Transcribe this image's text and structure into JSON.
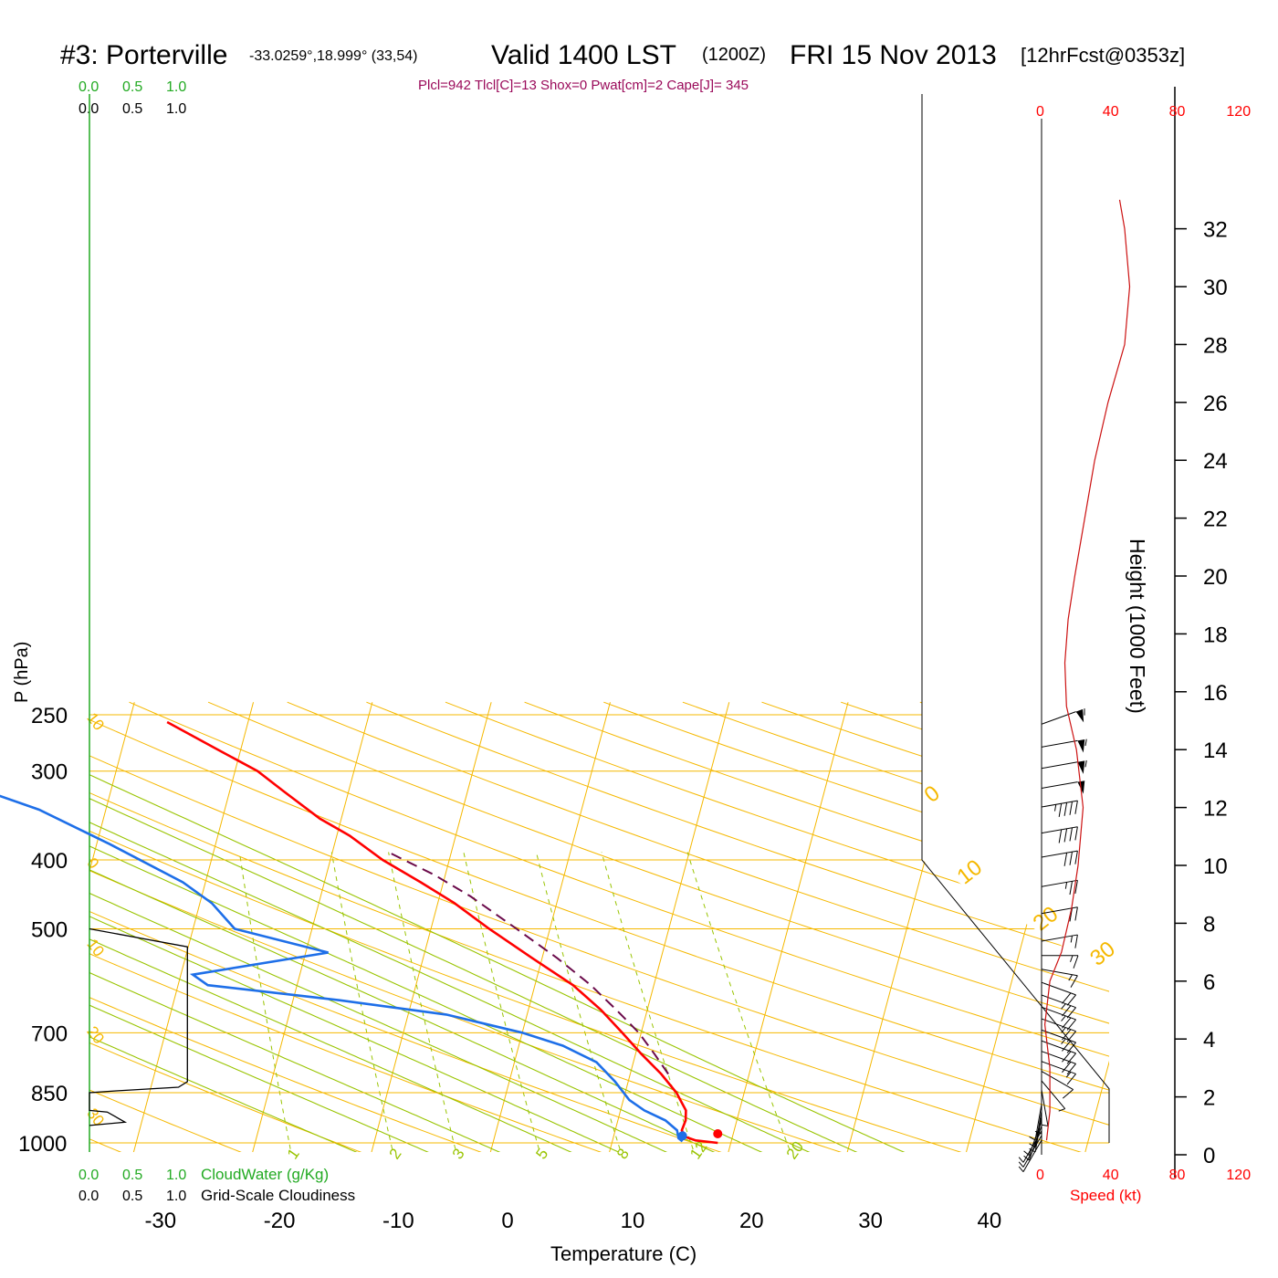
{
  "header": {
    "station": "#3: Porterville",
    "coords": "-33.0259°,18.999° (33,54)",
    "valid": "Valid 1400 LST",
    "zulu": "(1200Z)",
    "date": "FRI 15 Nov 2013",
    "forecast": "[12hrFcst@0353z]",
    "indices": "Plcl=942 Tlcl[C]=13 Shox=0 Pwat[cm]=2 Cape[J]= 345"
  },
  "axes": {
    "ylabel": "P (hPa)",
    "xlabel": "Temperature (C)",
    "height_label": "Height (1000 Feet)",
    "speed_label": "Speed (kt)",
    "cloudwater_label": "CloudWater (g/Kg)",
    "cloudiness_label": "Grid-Scale Cloudiness"
  },
  "colors": {
    "temperature": "#ff0000",
    "dewpoint": "#1e6fe8",
    "parcel": "#6b0a4a",
    "isobar": "#f5b800",
    "isotherm": "#f5b800",
    "dry_adiabat": "#f5b800",
    "moist_adiabat": "#99c400",
    "mixing_ratio": "#99c400",
    "cloud_water": "#22aa22",
    "header_indices": "#9a0a5a",
    "speed_axis": "#ff0000"
  },
  "chart_data": {
    "type": "line",
    "skewt": true,
    "pressure_levels": [
      250,
      300,
      400,
      500,
      700,
      850,
      1000
    ],
    "temperature_ticks": [
      -30,
      -20,
      -10,
      0,
      10,
      20,
      30,
      40
    ],
    "xlim": [
      -34,
      36
    ],
    "ylim_hpa": [
      1030,
      250
    ],
    "dry_adiabat_labels": [
      "10",
      "0",
      "10",
      "20",
      "30",
      "0",
      "10",
      "20",
      "30"
    ],
    "mixing_ratio_labels": [
      "1",
      "2",
      "3",
      "5",
      "8",
      "12",
      "20"
    ],
    "series": [
      {
        "name": "Temperature",
        "points": [
          {
            "p": 1000,
            "t": 18.9
          },
          {
            "p": 992,
            "t": 17.0
          },
          {
            "p": 980,
            "t": 16.0
          },
          {
            "p": 960,
            "t": 15.6
          },
          {
            "p": 930,
            "t": 15.7
          },
          {
            "p": 900,
            "t": 15.5
          },
          {
            "p": 850,
            "t": 14.3
          },
          {
            "p": 800,
            "t": 12.6
          },
          {
            "p": 750,
            "t": 10.5
          },
          {
            "p": 700,
            "t": 8.4
          },
          {
            "p": 650,
            "t": 6.1
          },
          {
            "p": 600,
            "t": 3.2
          },
          {
            "p": 550,
            "t": -0.8
          },
          {
            "p": 500,
            "t": -5.1
          },
          {
            "p": 460,
            "t": -8.6
          },
          {
            "p": 430,
            "t": -11.9
          },
          {
            "p": 400,
            "t": -15.6
          },
          {
            "p": 370,
            "t": -18.9
          },
          {
            "p": 350,
            "t": -21.8
          },
          {
            "p": 320,
            "t": -25.5
          },
          {
            "p": 300,
            "t": -28.1
          },
          {
            "p": 280,
            "t": -31.9
          },
          {
            "p": 256,
            "t": -36.8
          }
        ]
      },
      {
        "name": "Dewpoint",
        "points": [
          {
            "p": 995,
            "t": 15.9
          },
          {
            "p": 985,
            "t": 15.5
          },
          {
            "p": 960,
            "t": 15.2
          },
          {
            "p": 930,
            "t": 14.0
          },
          {
            "p": 900,
            "t": 12.0
          },
          {
            "p": 870,
            "t": 10.5
          },
          {
            "p": 820,
            "t": 8.9
          },
          {
            "p": 770,
            "t": 6.9
          },
          {
            "p": 730,
            "t": 3.7
          },
          {
            "p": 700,
            "t": 0.0
          },
          {
            "p": 660,
            "t": -6.8
          },
          {
            "p": 630,
            "t": -16.1
          },
          {
            "p": 600,
            "t": -27.5
          },
          {
            "p": 580,
            "t": -29.0
          },
          {
            "p": 540,
            "t": -18.1
          },
          {
            "p": 500,
            "t": -26.5
          },
          {
            "p": 460,
            "t": -29.0
          },
          {
            "p": 430,
            "t": -31.9
          },
          {
            "p": 380,
            "t": -38.9
          },
          {
            "p": 340,
            "t": -45.6
          },
          {
            "p": 320,
            "t": -50.5
          },
          {
            "p": 300,
            "t": -54.1
          },
          {
            "p": 280,
            "t": -54.0
          },
          {
            "p": 256,
            "t": -54.4
          }
        ]
      },
      {
        "name": "Parcel",
        "points": [
          {
            "p": 800,
            "t": 13.2
          },
          {
            "p": 750,
            "t": 11.6
          },
          {
            "p": 700,
            "t": 9.8
          },
          {
            "p": 650,
            "t": 7.4
          },
          {
            "p": 600,
            "t": 4.7
          },
          {
            "p": 550,
            "t": 1.3
          },
          {
            "p": 500,
            "t": -2.8
          },
          {
            "p": 450,
            "t": -7.4
          },
          {
            "p": 420,
            "t": -10.9
          },
          {
            "p": 390,
            "t": -15.3
          }
        ]
      }
    ],
    "cloud_cover": [
      {
        "p": 500,
        "frac": 0.0
      },
      {
        "p": 530,
        "frac": 0.55
      },
      {
        "p": 820,
        "frac": 0.55
      },
      {
        "p": 835,
        "frac": 0.5
      },
      {
        "p": 845,
        "frac": 0.15
      },
      {
        "p": 850,
        "frac": 0.0
      },
      {
        "p": 900,
        "frac": 0.0
      },
      {
        "p": 905,
        "frac": 0.1
      },
      {
        "p": 935,
        "frac": 0.2
      },
      {
        "p": 945,
        "frac": 0.0
      }
    ],
    "height_axis": {
      "ticks": [
        0,
        2,
        4,
        6,
        8,
        10,
        12,
        14,
        16,
        18,
        20,
        22,
        24,
        26,
        28,
        30,
        32
      ]
    },
    "speed_axis": {
      "ticks": [
        0,
        40,
        80,
        120
      ]
    },
    "wind_speed_profile": [
      {
        "h": 0.5,
        "s": 3
      },
      {
        "h": 1.5,
        "s": 5
      },
      {
        "h": 3.0,
        "s": 5
      },
      {
        "h": 4.5,
        "s": 2
      },
      {
        "h": 6.0,
        "s": 5
      },
      {
        "h": 7.0,
        "s": 12
      },
      {
        "h": 8.5,
        "s": 18
      },
      {
        "h": 10.0,
        "s": 22
      },
      {
        "h": 12.0,
        "s": 25
      },
      {
        "h": 14.0,
        "s": 21
      },
      {
        "h": 15.5,
        "s": 15
      },
      {
        "h": 17.0,
        "s": 14
      },
      {
        "h": 18.5,
        "s": 16
      },
      {
        "h": 20.0,
        "s": 20
      },
      {
        "h": 22.0,
        "s": 26
      },
      {
        "h": 24.0,
        "s": 32
      },
      {
        "h": 26.0,
        "s": 40
      },
      {
        "h": 28.0,
        "s": 50
      },
      {
        "h": 30.0,
        "s": 53
      },
      {
        "h": 32.0,
        "s": 50
      },
      {
        "h": 33.0,
        "s": 47
      }
    ],
    "wind_barbs": [
      {
        "p": 1000,
        "dir": 150,
        "spd": 5
      },
      {
        "p": 985,
        "dir": 150,
        "spd": 5
      },
      {
        "p": 970,
        "dir": 150,
        "spd": 5
      },
      {
        "p": 955,
        "dir": 160,
        "spd": 5
      },
      {
        "p": 940,
        "dir": 160,
        "spd": 5
      },
      {
        "p": 925,
        "dir": 170,
        "spd": 5
      },
      {
        "p": 910,
        "dir": 170,
        "spd": 5
      },
      {
        "p": 890,
        "dir": 170,
        "spd": 5
      },
      {
        "p": 870,
        "dir": 180,
        "spd": 5
      },
      {
        "p": 850,
        "dir": 190,
        "spd": 5
      },
      {
        "p": 825,
        "dir": 220,
        "spd": 5
      },
      {
        "p": 800,
        "dir": 240,
        "spd": 10
      },
      {
        "p": 775,
        "dir": 250,
        "spd": 15
      },
      {
        "p": 750,
        "dir": 250,
        "spd": 20
      },
      {
        "p": 725,
        "dir": 250,
        "spd": 20
      },
      {
        "p": 700,
        "dir": 250,
        "spd": 25
      },
      {
        "p": 675,
        "dir": 250,
        "spd": 25
      },
      {
        "p": 650,
        "dir": 250,
        "spd": 25
      },
      {
        "p": 625,
        "dir": 250,
        "spd": 25
      },
      {
        "p": 600,
        "dir": 250,
        "spd": 20
      },
      {
        "p": 575,
        "dir": 260,
        "spd": 15
      },
      {
        "p": 550,
        "dir": 270,
        "spd": 15
      },
      {
        "p": 525,
        "dir": 280,
        "spd": 15
      },
      {
        "p": 480,
        "dir": 280,
        "spd": 20
      },
      {
        "p": 440,
        "dir": 280,
        "spd": 25
      },
      {
        "p": 400,
        "dir": 280,
        "spd": 30
      },
      {
        "p": 370,
        "dir": 280,
        "spd": 40
      },
      {
        "p": 340,
        "dir": 280,
        "spd": 45
      },
      {
        "p": 320,
        "dir": 280,
        "spd": 50
      },
      {
        "p": 300,
        "dir": 280,
        "spd": 55
      },
      {
        "p": 280,
        "dir": 280,
        "spd": 55
      },
      {
        "p": 260,
        "dir": 290,
        "spd": 55
      }
    ]
  }
}
